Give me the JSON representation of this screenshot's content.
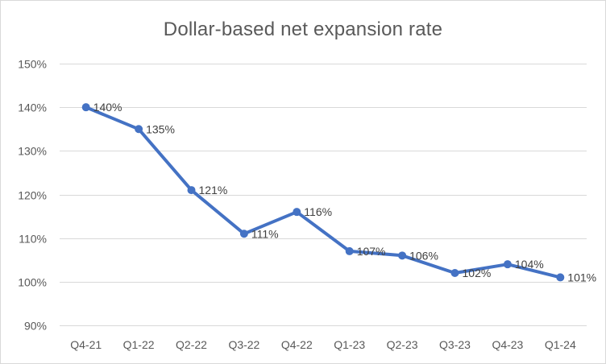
{
  "chart_data": {
    "type": "line",
    "title": "Dollar-based net expansion rate",
    "xlabel": "",
    "ylabel": "",
    "categories": [
      "Q4-21",
      "Q1-22",
      "Q2-22",
      "Q3-22",
      "Q4-22",
      "Q1-23",
      "Q2-23",
      "Q3-23",
      "Q4-23",
      "Q1-24"
    ],
    "series": [
      {
        "values": [
          140,
          135,
          121,
          111,
          116,
          107,
          106,
          102,
          104,
          101
        ],
        "data_labels": [
          "140%",
          "135%",
          "121%",
          "111%",
          "116%",
          "107%",
          "106%",
          "102%",
          "104%",
          "101%"
        ],
        "color": "#4472c4"
      }
    ],
    "ylim": [
      90,
      150
    ],
    "yticks": [
      90,
      100,
      110,
      120,
      130,
      140,
      150
    ],
    "ytick_labels": [
      "90%",
      "100%",
      "110%",
      "120%",
      "130%",
      "140%",
      "150%"
    ],
    "grid": true,
    "legend": "none"
  }
}
